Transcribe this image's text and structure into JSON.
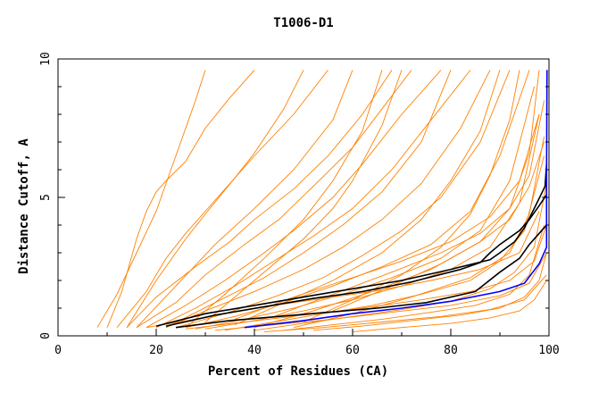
{
  "chart_data": {
    "type": "line",
    "title": "T1006-D1",
    "xlabel": "Percent of Residues (CA)",
    "ylabel": "Distance Cutoff, A",
    "xlim": [
      0,
      100
    ],
    "ylim": [
      0,
      10
    ],
    "x_ticks": [
      "0",
      "20",
      "40",
      "60",
      "80",
      "100"
    ],
    "y_ticks": [
      "0",
      "5",
      "10"
    ],
    "grid": false,
    "legend": "none",
    "colors": {
      "models": "#ff8000",
      "highlight": "#000000",
      "best": "#0000ff"
    },
    "series": [
      {
        "color": "#0000ff",
        "x": [
          38,
          50,
          60,
          70,
          80,
          90,
          95,
          98,
          99.5,
          99.5,
          99.6
        ],
        "y": [
          0.3,
          0.55,
          0.8,
          1.0,
          1.25,
          1.6,
          1.9,
          2.6,
          3.2,
          6.0,
          9.6
        ]
      },
      {
        "color": "#000000",
        "x": [
          20,
          30,
          40,
          50,
          60,
          70,
          80,
          88,
          90,
          93,
          95,
          97,
          99.2,
          99.5
        ],
        "y": [
          0.35,
          0.8,
          1.1,
          1.4,
          1.7,
          2.0,
          2.4,
          2.75,
          3.0,
          3.4,
          3.9,
          4.6,
          5.4,
          6.2
        ]
      },
      {
        "color": "#000000",
        "x": [
          22,
          32,
          42,
          52,
          62,
          72,
          82,
          86,
          88,
          90,
          94,
          96,
          98,
          99.5
        ],
        "y": [
          0.35,
          0.75,
          1.05,
          1.35,
          1.6,
          1.95,
          2.4,
          2.65,
          3.0,
          3.3,
          3.8,
          4.2,
          4.7,
          5.1
        ]
      },
      {
        "color": "#000000",
        "x": [
          24,
          35,
          45,
          55,
          65,
          75,
          85,
          90,
          94,
          96,
          98,
          99.5
        ],
        "y": [
          0.3,
          0.55,
          0.7,
          0.85,
          1.0,
          1.2,
          1.6,
          2.3,
          2.8,
          3.3,
          3.7,
          4.0
        ]
      },
      {
        "color": "#ff8000",
        "x": [
          8,
          12,
          16,
          20,
          22,
          25,
          28,
          30
        ],
        "y": [
          0.3,
          1.5,
          3.0,
          4.5,
          5.5,
          7.0,
          8.5,
          9.6
        ]
      },
      {
        "color": "#ff8000",
        "x": [
          10,
          13,
          16,
          18,
          20,
          22,
          26,
          30,
          35,
          40
        ],
        "y": [
          0.3,
          1.6,
          3.5,
          4.5,
          5.2,
          5.6,
          6.3,
          7.5,
          8.6,
          9.6
        ]
      },
      {
        "color": "#ff8000",
        "x": [
          12,
          18,
          22,
          26,
          30,
          35,
          40,
          48,
          55
        ],
        "y": [
          0.3,
          1.6,
          2.8,
          3.7,
          4.5,
          5.5,
          6.5,
          8.0,
          9.6
        ]
      },
      {
        "color": "#ff8000",
        "x": [
          14,
          20,
          28,
          35,
          40,
          48,
          55,
          62,
          68
        ],
        "y": [
          0.3,
          1.4,
          2.5,
          3.4,
          4.2,
          5.3,
          6.5,
          8.0,
          9.6
        ]
      },
      {
        "color": "#ff8000",
        "x": [
          16,
          24,
          30,
          38,
          45,
          52,
          60,
          66,
          72
        ],
        "y": [
          0.3,
          1.2,
          2.2,
          3.3,
          4.2,
          5.4,
          6.8,
          8.2,
          9.6
        ]
      },
      {
        "color": "#ff8000",
        "x": [
          18,
          26,
          34,
          42,
          48,
          56,
          62,
          70,
          78
        ],
        "y": [
          0.3,
          1.1,
          2.0,
          3.0,
          3.8,
          5.0,
          6.2,
          8.0,
          9.6
        ]
      },
      {
        "color": "#ff8000",
        "x": [
          20,
          28,
          36,
          44,
          52,
          60,
          68,
          76,
          84
        ],
        "y": [
          0.3,
          1.0,
          1.8,
          2.7,
          3.6,
          4.6,
          6.0,
          7.8,
          9.6
        ]
      },
      {
        "color": "#ff8000",
        "x": [
          22,
          30,
          40,
          50,
          58,
          66,
          74,
          82,
          88
        ],
        "y": [
          0.3,
          0.9,
          1.6,
          2.4,
          3.2,
          4.2,
          5.5,
          7.5,
          9.6
        ]
      },
      {
        "color": "#ff8000",
        "x": [
          24,
          34,
          44,
          54,
          62,
          70,
          78,
          86,
          92
        ],
        "y": [
          0.3,
          0.8,
          1.4,
          2.1,
          2.9,
          3.8,
          5.0,
          7.0,
          9.6
        ]
      },
      {
        "color": "#ff8000",
        "x": [
          26,
          36,
          46,
          56,
          66,
          76,
          84,
          90,
          96
        ],
        "y": [
          0.3,
          0.7,
          1.2,
          1.8,
          2.5,
          3.3,
          4.5,
          6.5,
          9.6
        ]
      },
      {
        "color": "#ff8000",
        "x": [
          28,
          38,
          48,
          58,
          68,
          78,
          86,
          92,
          97
        ],
        "y": [
          0.25,
          0.6,
          1.0,
          1.5,
          2.1,
          2.8,
          3.8,
          5.6,
          9.0
        ]
      },
      {
        "color": "#ff8000",
        "x": [
          30,
          40,
          50,
          60,
          70,
          80,
          88,
          94,
          98
        ],
        "y": [
          0.25,
          0.55,
          0.9,
          1.3,
          1.8,
          2.4,
          3.2,
          4.8,
          8.0
        ]
      },
      {
        "color": "#ff8000",
        "x": [
          34,
          44,
          54,
          64,
          74,
          84,
          90,
          95,
          99
        ],
        "y": [
          0.2,
          0.5,
          0.8,
          1.1,
          1.5,
          2.0,
          2.7,
          3.8,
          6.5
        ]
      },
      {
        "color": "#ff8000",
        "x": [
          40,
          50,
          60,
          70,
          80,
          88,
          93,
          97,
          99.5
        ],
        "y": [
          0.2,
          0.45,
          0.7,
          0.95,
          1.25,
          1.7,
          2.3,
          3.2,
          5.5
        ]
      },
      {
        "color": "#ff8000",
        "x": [
          46,
          56,
          66,
          76,
          85,
          92,
          96,
          99
        ],
        "y": [
          0.2,
          0.4,
          0.6,
          0.85,
          1.1,
          1.5,
          2.2,
          4.0
        ]
      },
      {
        "color": "#ff8000",
        "x": [
          52,
          62,
          72,
          82,
          90,
          95,
          98,
          99.5
        ],
        "y": [
          0.2,
          0.35,
          0.55,
          0.75,
          1.0,
          1.4,
          2.0,
          3.0
        ]
      },
      {
        "color": "#ff8000",
        "x": [
          60,
          70,
          80,
          88,
          94,
          97,
          99.5
        ],
        "y": [
          0.15,
          0.3,
          0.45,
          0.65,
          0.9,
          1.3,
          2.0
        ]
      },
      {
        "color": "#ff8000",
        "x": [
          14,
          20,
          26,
          30,
          36,
          40,
          46,
          50
        ],
        "y": [
          0.3,
          2.0,
          3.5,
          4.4,
          5.7,
          6.6,
          8.2,
          9.6
        ]
      },
      {
        "color": "#ff8000",
        "x": [
          30,
          40,
          50,
          56,
          60,
          66,
          70
        ],
        "y": [
          0.5,
          2.0,
          3.5,
          4.6,
          5.6,
          7.6,
          9.6
        ]
      },
      {
        "color": "#ff8000",
        "x": [
          16,
          24,
          32,
          40,
          48,
          56,
          60
        ],
        "y": [
          0.3,
          1.8,
          3.3,
          4.6,
          6.0,
          7.8,
          9.6
        ]
      },
      {
        "color": "#ff8000",
        "x": [
          36,
          46,
          56,
          66,
          74,
          80,
          86,
          90
        ],
        "y": [
          0.4,
          1.2,
          2.0,
          3.0,
          4.2,
          5.6,
          7.4,
          9.6
        ]
      },
      {
        "color": "#ff8000",
        "x": [
          50,
          60,
          70,
          78,
          84,
          88,
          92,
          94
        ],
        "y": [
          0.5,
          1.3,
          2.2,
          3.2,
          4.4,
          5.8,
          7.8,
          9.6
        ]
      },
      {
        "color": "#ff8000",
        "x": [
          36,
          48,
          60,
          70,
          80,
          88,
          94,
          98
        ],
        "y": [
          0.6,
          1.4,
          2.1,
          2.7,
          3.4,
          4.3,
          5.6,
          8.0
        ]
      },
      {
        "color": "#ff8000",
        "x": [
          44,
          56,
          68,
          78,
          86,
          92,
          96,
          99
        ],
        "y": [
          0.7,
          1.5,
          2.3,
          3.0,
          3.7,
          4.6,
          5.8,
          8.5
        ]
      },
      {
        "color": "#ff8000",
        "x": [
          56,
          68,
          78,
          86,
          92,
          96,
          99
        ],
        "y": [
          0.9,
          1.8,
          2.6,
          3.4,
          4.2,
          5.4,
          7.0
        ]
      },
      {
        "color": "#ff8000",
        "x": [
          18,
          28,
          40,
          52,
          64,
          76,
          86,
          94,
          98
        ],
        "y": [
          0.3,
          0.6,
          1.0,
          1.3,
          1.6,
          2.0,
          2.4,
          3.0,
          4.5
        ]
      },
      {
        "color": "#ff8000",
        "x": [
          26,
          38,
          50,
          62,
          74,
          84,
          92,
          97,
          99.5
        ],
        "y": [
          0.25,
          0.5,
          0.75,
          1.0,
          1.3,
          1.6,
          2.0,
          2.7,
          4.0
        ]
      },
      {
        "color": "#ff8000",
        "x": [
          32,
          44,
          56,
          68,
          80,
          90,
          96,
          99.5
        ],
        "y": [
          0.2,
          0.4,
          0.6,
          0.85,
          1.1,
          1.45,
          1.9,
          3.0
        ]
      },
      {
        "color": "#ff8000",
        "x": [
          42,
          54,
          66,
          78,
          88,
          95,
          99.5
        ],
        "y": [
          0.15,
          0.3,
          0.5,
          0.7,
          0.95,
          1.3,
          2.2
        ]
      },
      {
        "color": "#ff8000",
        "x": [
          22,
          32,
          42,
          50,
          58,
          66,
          74,
          80
        ],
        "y": [
          0.3,
          1.2,
          2.1,
          3.0,
          4.0,
          5.2,
          7.0,
          9.6
        ]
      },
      {
        "color": "#ff8000",
        "x": [
          26,
          34,
          42,
          50,
          56,
          62,
          66
        ],
        "y": [
          0.3,
          1.5,
          2.8,
          4.2,
          5.6,
          7.4,
          9.6
        ]
      },
      {
        "color": "#ff8000",
        "x": [
          40,
          52,
          64,
          76,
          86,
          92,
          96,
          98
        ],
        "y": [
          0.3,
          0.9,
          1.6,
          2.4,
          3.4,
          4.6,
          6.6,
          9.6
        ]
      },
      {
        "color": "#ff8000",
        "x": [
          48,
          60,
          72,
          84,
          92,
          96,
          99
        ],
        "y": [
          0.3,
          0.8,
          1.4,
          2.1,
          3.0,
          4.4,
          7.2
        ]
      }
    ]
  }
}
